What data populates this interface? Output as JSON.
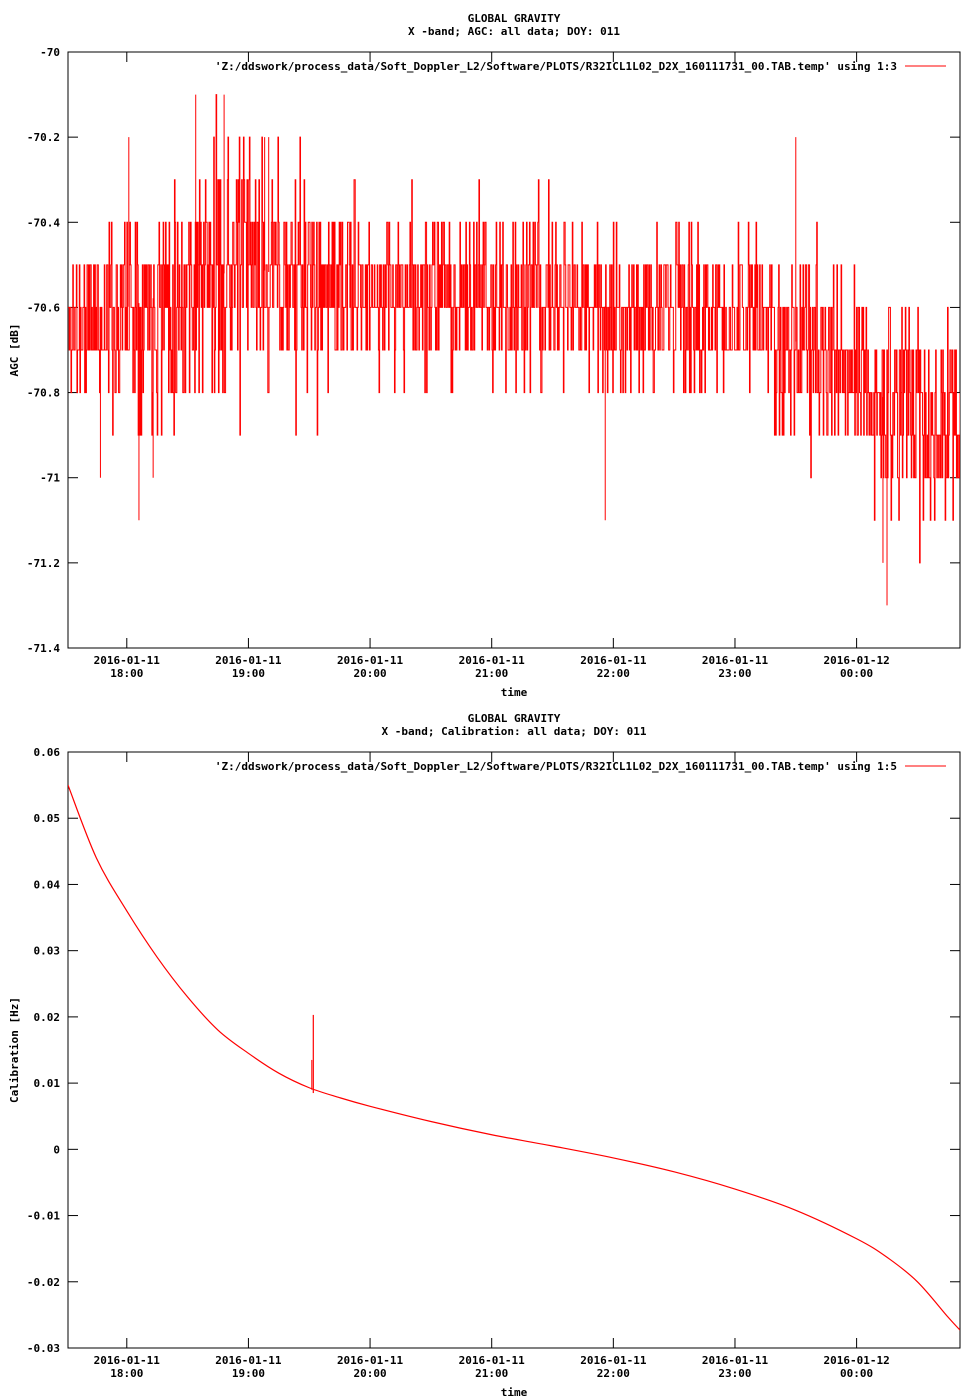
{
  "chart_data": [
    {
      "type": "line",
      "title": "GLOBAL GRAVITY",
      "subtitle": "X -band; AGC: all data; DOY: 011",
      "xlabel": "time",
      "ylabel": "AGC [dB]",
      "x_axis": {
        "type": "time",
        "range": [
          "2016-01-11 17:31",
          "2016-01-12 00:51"
        ],
        "ticks": [
          {
            "value": "2016-01-11 18:00",
            "line1": "2016-01-11",
            "line2": "18:00"
          },
          {
            "value": "2016-01-11 19:00",
            "line1": "2016-01-11",
            "line2": "19:00"
          },
          {
            "value": "2016-01-11 20:00",
            "line1": "2016-01-11",
            "line2": "20:00"
          },
          {
            "value": "2016-01-11 21:00",
            "line1": "2016-01-11",
            "line2": "21:00"
          },
          {
            "value": "2016-01-11 22:00",
            "line1": "2016-01-11",
            "line2": "22:00"
          },
          {
            "value": "2016-01-11 23:00",
            "line1": "2016-01-11",
            "line2": "23:00"
          },
          {
            "value": "2016-01-12 00:00",
            "line1": "2016-01-12",
            "line2": "00:00"
          }
        ]
      },
      "y_axis": {
        "range": [
          -71.4,
          -70.0
        ],
        "ticks": [
          {
            "value": -70.0,
            "label": "-70"
          },
          {
            "value": -70.2,
            "label": "-70.2"
          },
          {
            "value": -70.4,
            "label": "-70.4"
          },
          {
            "value": -70.6,
            "label": "-70.6"
          },
          {
            "value": -70.8,
            "label": "-70.8"
          },
          {
            "value": -71.0,
            "label": "-71"
          },
          {
            "value": -71.2,
            "label": "-71.2"
          },
          {
            "value": -71.4,
            "label": "-71.4"
          }
        ]
      },
      "grid": false,
      "legend_position": "top-right",
      "series": [
        {
          "name": "'Z:/ddswork/process_data/Soft_Doppler_L2/Software/PLOTS/R32ICL1L02_D2X_160111731_00.TAB.temp' using 1:3",
          "color": "#ff0000",
          "quantization": 0.1,
          "x": [
            "2016-01-11 17:31",
            "2016-01-11 18:00",
            "2016-01-11 18:30",
            "2016-01-11 19:00",
            "2016-01-11 19:30",
            "2016-01-11 20:00",
            "2016-01-11 20:30",
            "2016-01-11 21:00",
            "2016-01-11 21:30",
            "2016-01-11 22:00",
            "2016-01-11 22:30",
            "2016-01-11 23:00",
            "2016-01-11 23:30",
            "2016-01-12 00:00",
            "2016-01-12 00:30",
            "2016-01-12 00:51"
          ],
          "mean": [
            -70.65,
            -70.6,
            -70.55,
            -70.5,
            -70.55,
            -70.57,
            -70.57,
            -70.58,
            -70.58,
            -70.6,
            -70.62,
            -70.62,
            -70.68,
            -70.78,
            -70.85,
            -70.88
          ],
          "spread": [
            0.1,
            0.12,
            0.15,
            0.15,
            0.12,
            0.1,
            0.1,
            0.1,
            0.1,
            0.1,
            0.1,
            0.1,
            0.12,
            0.12,
            0.12,
            0.12
          ],
          "spikes": [
            {
              "x": "2016-01-11 17:47",
              "y": -71.0
            },
            {
              "x": "2016-01-11 18:01",
              "y": -70.2
            },
            {
              "x": "2016-01-11 18:06",
              "y": -71.1
            },
            {
              "x": "2016-01-11 18:13",
              "y": -71.0
            },
            {
              "x": "2016-01-11 18:34",
              "y": -70.1
            },
            {
              "x": "2016-01-11 18:48",
              "y": -70.1
            },
            {
              "x": "2016-01-11 19:08",
              "y": -70.2
            },
            {
              "x": "2016-01-11 19:10",
              "y": -70.2
            },
            {
              "x": "2016-01-11 21:56",
              "y": -71.1
            },
            {
              "x": "2016-01-11 23:30",
              "y": -70.2
            },
            {
              "x": "2016-01-12 00:15",
              "y": -71.3
            },
            {
              "x": "2016-01-12 00:13",
              "y": -71.2
            }
          ]
        }
      ]
    },
    {
      "type": "line",
      "title": "GLOBAL GRAVITY",
      "subtitle": "X -band; Calibration: all data; DOY: 011",
      "xlabel": "time",
      "ylabel": "Calibration [Hz]",
      "x_axis": {
        "type": "time",
        "range": [
          "2016-01-11 17:31",
          "2016-01-12 00:51"
        ],
        "ticks": [
          {
            "value": "2016-01-11 18:00",
            "line1": "2016-01-11",
            "line2": "18:00"
          },
          {
            "value": "2016-01-11 19:00",
            "line1": "2016-01-11",
            "line2": "19:00"
          },
          {
            "value": "2016-01-11 20:00",
            "line1": "2016-01-11",
            "line2": "20:00"
          },
          {
            "value": "2016-01-11 21:00",
            "line1": "2016-01-11",
            "line2": "21:00"
          },
          {
            "value": "2016-01-11 22:00",
            "line1": "2016-01-11",
            "line2": "22:00"
          },
          {
            "value": "2016-01-11 23:00",
            "line1": "2016-01-11",
            "line2": "23:00"
          },
          {
            "value": "2016-01-12 00:00",
            "line1": "2016-01-12",
            "line2": "00:00"
          }
        ]
      },
      "y_axis": {
        "range": [
          -0.03,
          0.06
        ],
        "ticks": [
          {
            "value": 0.06,
            "label": "0.06"
          },
          {
            "value": 0.05,
            "label": "0.05"
          },
          {
            "value": 0.04,
            "label": "0.04"
          },
          {
            "value": 0.03,
            "label": "0.03"
          },
          {
            "value": 0.02,
            "label": "0.02"
          },
          {
            "value": 0.01,
            "label": "0.01"
          },
          {
            "value": 0.0,
            "label": "0"
          },
          {
            "value": -0.01,
            "label": "-0.01"
          },
          {
            "value": -0.02,
            "label": "-0.02"
          },
          {
            "value": -0.03,
            "label": "-0.03"
          }
        ]
      },
      "grid": false,
      "legend_position": "top-right",
      "series": [
        {
          "name": "'Z:/ddswork/process_data/Soft_Doppler_L2/Software/PLOTS/R32ICL1L02_D2X_160111731_00.TAB.temp' using 1:5",
          "color": "#ff0000",
          "x": [
            "2016-01-11 17:31",
            "2016-01-11 17:45",
            "2016-01-11 18:00",
            "2016-01-11 18:15",
            "2016-01-11 18:30",
            "2016-01-11 18:45",
            "2016-01-11 19:00",
            "2016-01-11 19:15",
            "2016-01-11 19:30",
            "2016-01-11 19:45",
            "2016-01-11 20:00",
            "2016-01-11 20:30",
            "2016-01-11 21:00",
            "2016-01-11 21:30",
            "2016-01-11 22:00",
            "2016-01-11 22:30",
            "2016-01-11 23:00",
            "2016-01-11 23:30",
            "2016-01-12 00:00",
            "2016-01-12 00:15",
            "2016-01-12 00:30",
            "2016-01-12 00:45",
            "2016-01-12 00:51"
          ],
          "y": [
            0.055,
            0.044,
            0.036,
            0.029,
            0.023,
            0.018,
            0.0145,
            0.0115,
            0.0093,
            0.0078,
            0.0065,
            0.0042,
            0.0022,
            0.0005,
            -0.0013,
            -0.0034,
            -0.006,
            -0.0092,
            -0.0135,
            -0.0163,
            -0.02,
            -0.0253,
            -0.0273
          ]
        }
      ],
      "annotations": [
        {
          "x": "2016-01-11 19:32",
          "y_min": 0.0085,
          "y_max": 0.0203
        }
      ]
    }
  ]
}
